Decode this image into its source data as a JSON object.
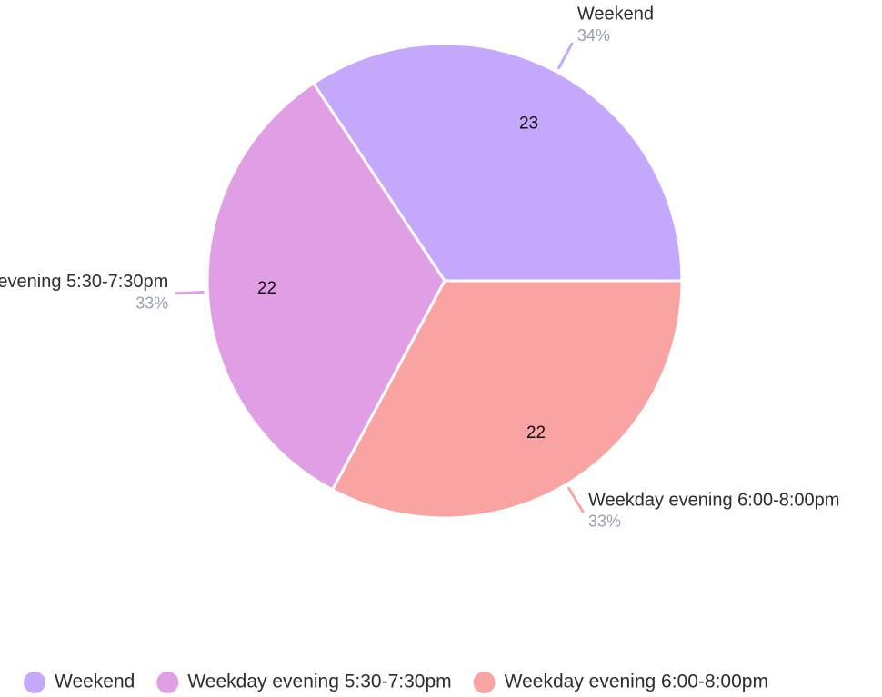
{
  "chart_data": {
    "type": "pie",
    "categories": [
      "Weekend",
      "Weekday evening 5:30-7:30pm",
      "Weekday evening 6:00-8:00pm"
    ],
    "values": [
      23,
      22,
      22
    ],
    "percent_labels": [
      "34%",
      "33%",
      "33%"
    ],
    "colors": [
      "#c4a8fc",
      "#e09ee4",
      "#f9a3a3"
    ],
    "legend": "bottom"
  }
}
